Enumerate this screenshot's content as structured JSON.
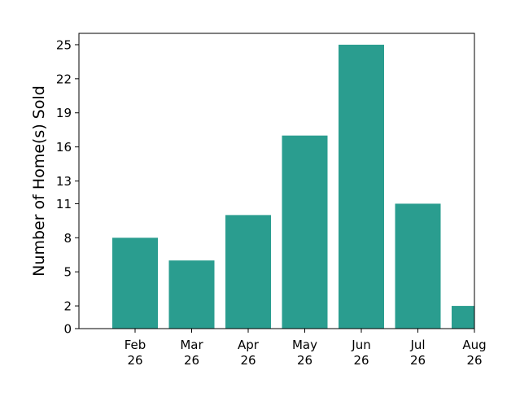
{
  "chart_data": {
    "type": "bar",
    "title": "",
    "xlabel": "",
    "ylabel": "Number of Home(s) Sold",
    "categories": [
      [
        "Feb",
        "26"
      ],
      [
        "Mar",
        "26"
      ],
      [
        "Apr",
        "26"
      ],
      [
        "May",
        "26"
      ],
      [
        "Jun",
        "26"
      ],
      [
        "Jul",
        "26"
      ],
      [
        "Aug",
        "26"
      ]
    ],
    "values": [
      8,
      6,
      10,
      17,
      25,
      11,
      2
    ],
    "yticks": [
      0,
      2,
      5,
      8,
      11,
      13,
      16,
      19,
      22,
      25
    ],
    "ylim": [
      0,
      26
    ],
    "bar_color": "#2a9d8f",
    "grid": false,
    "legend": "none"
  }
}
